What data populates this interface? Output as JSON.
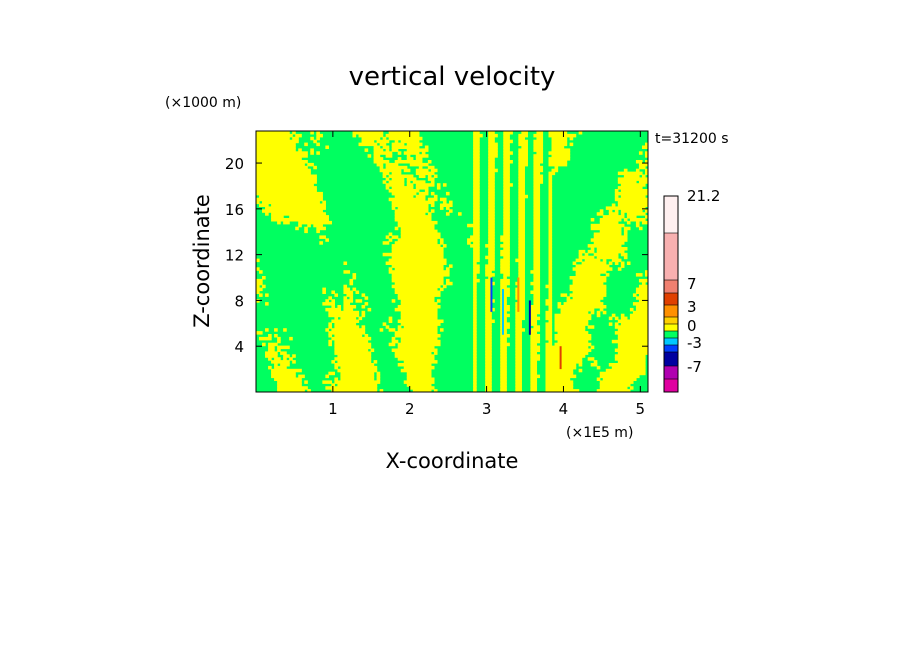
{
  "chart_data": {
    "type": "heatmap",
    "title": "vertical velocity",
    "xlabel": "X-coordinate",
    "ylabel": "Z-coordinate",
    "x_unit": "(×1E5 m)",
    "y_unit": "(×1000 m)",
    "time_label": "t=31200 s",
    "xlim": [
      0,
      5.1
    ],
    "ylim": [
      0,
      22.8
    ],
    "x_ticks": [
      "1",
      "2",
      "3",
      "4",
      "5"
    ],
    "x_tick_values": [
      1,
      2,
      3,
      4,
      5
    ],
    "y_ticks": [
      "4",
      "8",
      "12",
      "16",
      "20"
    ],
    "y_tick_values": [
      4,
      8,
      12,
      16,
      20
    ],
    "colorbar": {
      "labels": [
        "21.2",
        "7",
        "3",
        "0",
        "-3",
        "-7"
      ],
      "levels": [
        {
          "color": "#e000a0"
        },
        {
          "color": "#b000b0"
        },
        {
          "color": "#0000a0"
        },
        {
          "color": "#0040ff"
        },
        {
          "color": "#00c8ff"
        },
        {
          "color": "#00ff60"
        },
        {
          "color": "#ffff00"
        },
        {
          "color": "#ffd000"
        },
        {
          "color": "#ff9000"
        },
        {
          "color": "#e04000"
        },
        {
          "color": "#f08070"
        },
        {
          "color": "#f8b0b0"
        },
        {
          "color": "#fff0f0"
        }
      ]
    },
    "dominant_fields": {
      "positive": "#ffff00",
      "negative": "#00ff60"
    },
    "grid": false,
    "legend": "colorbar right"
  }
}
